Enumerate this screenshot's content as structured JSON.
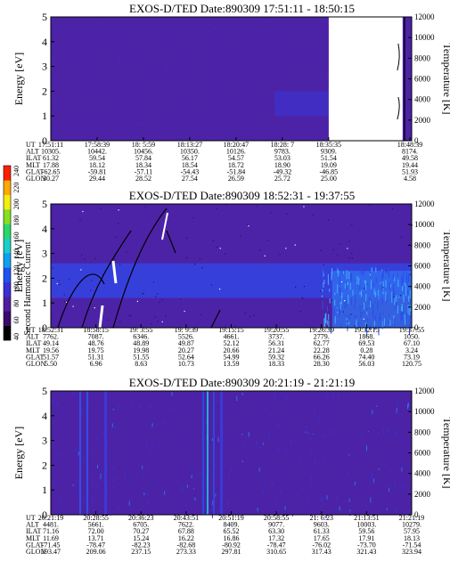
{
  "colorbar": {
    "label": "Second Harmonic Current",
    "ticks": [
      "40",
      "60",
      "80",
      "100",
      "120",
      "140",
      "160",
      "180",
      "200",
      "220",
      "240"
    ],
    "colors": [
      "#000000",
      "#3a0a6e",
      "#4f1fa0",
      "#3b2fd8",
      "#1f52f2",
      "#0fa0f0",
      "#18d0c8",
      "#28d86a",
      "#86e020",
      "#f2ee10",
      "#ffa800",
      "#ff2000"
    ]
  },
  "chart_data": [
    {
      "type": "heatmap",
      "title": "EXOS-D/TED   Date:890309  17:51:11 - 18:50:15",
      "ylabel": "Energy [eV]",
      "y2label": "Temperature [K]",
      "ylim": [
        0,
        5
      ],
      "y2lim": [
        0,
        12000
      ],
      "yticks": [
        "0",
        "1",
        "2",
        "3",
        "4",
        "5"
      ],
      "y2ticks": [
        "0",
        "2000",
        "4000",
        "6000",
        "8000",
        "10000",
        "12000"
      ],
      "data_gap": [
        "18:35:35",
        "18:48:39"
      ],
      "ephemeris": {
        "labels": [
          "UT",
          "ALT",
          "ILAT",
          "MLT",
          "GLAT",
          "GLON"
        ],
        "columns": [
          [
            "17:51:11",
            "10305.",
            "61.32",
            "17.88",
            "-62.65",
            "30.27"
          ],
          [
            "17:58:39",
            "10442.",
            "59.54",
            "18.12",
            "-59.81",
            "29.44"
          ],
          [
            "18: 5:59",
            "10456.",
            "57.84",
            "18.34",
            "-57.11",
            "28.52"
          ],
          [
            "18:13:27",
            "10350.",
            "56.17",
            "18.54",
            "-54.43",
            "27.54"
          ],
          [
            "18:20:47",
            "10126.",
            "54.57",
            "18.72",
            "-51.84",
            "26.59"
          ],
          [
            "18:28: 7",
            "9783.",
            "53.03",
            "18.90",
            "-49.32",
            "25.72"
          ],
          [
            "18:35:35",
            "9309.",
            "51.54",
            "19.09",
            "-46.85",
            "25.00"
          ],
          [
            "18:48:39",
            "8174.",
            "49.58",
            "19.44",
            "51.93",
            "4.58"
          ]
        ]
      }
    },
    {
      "type": "heatmap",
      "title": "EXOS-D/TED   Date:890309  18:52:31 - 19:37:55",
      "ylabel": "Energy [eV]",
      "y2label": "Temperature [K]",
      "ylim": [
        0,
        5
      ],
      "y2lim": [
        0,
        12000
      ],
      "yticks": [
        "0",
        "1",
        "2",
        "3",
        "4",
        "5"
      ],
      "y2ticks": [
        "0",
        "2000",
        "4000",
        "6000",
        "8000",
        "10000",
        "12000"
      ],
      "ephemeris": {
        "labels": [
          "UT",
          "ALT",
          "ILAT",
          "MLT",
          "GLAT",
          "GLON"
        ],
        "columns": [
          [
            "18:52:31",
            "7762.",
            "49.14",
            "19.56",
            "51.57",
            "5.50"
          ],
          [
            "18:58:15",
            "7087.",
            "48.76",
            "19.75",
            "51.31",
            "6.96"
          ],
          [
            "19: 3:55",
            "6346.",
            "48.89",
            "19.98",
            "51.55",
            "8.63"
          ],
          [
            "19: 9:39",
            "5526.",
            "49.87",
            "20.27",
            "52.64",
            "10.73"
          ],
          [
            "19:15:15",
            "4661.",
            "52.12",
            "20.66",
            "54.99",
            "13.59"
          ],
          [
            "19:20:55",
            "3737.",
            "56.31",
            "21.24",
            "59.32",
            "18.33"
          ],
          [
            "19:26:39",
            "2779.",
            "62.77",
            "22.28",
            "66.26",
            "28.30"
          ],
          [
            "19:32:15",
            "1868.",
            "69.53",
            "0.28",
            "74.40",
            "56.03"
          ],
          [
            "19:37:55",
            "1050.",
            "67.10",
            "3.24",
            "73.19",
            "120.75"
          ]
        ]
      }
    },
    {
      "type": "heatmap",
      "title": "EXOS-D/TED   Date:890309  20:21:19 - 21:21:19",
      "ylabel": "Energy [eV]",
      "y2label": "Temperature [K]",
      "ylim": [
        0,
        5
      ],
      "y2lim": [
        0,
        12000
      ],
      "yticks": [
        "0",
        "1",
        "2",
        "3",
        "4",
        "5"
      ],
      "y2ticks": [
        "0",
        "2000",
        "4000",
        "6000",
        "8000",
        "10000",
        "12000"
      ],
      "ephemeris": {
        "labels": [
          "UT",
          "ALT",
          "ILAT",
          "MLT",
          "GLAT",
          "GLON"
        ],
        "columns": [
          [
            "20:21:19",
            "4481.",
            "71.16",
            "11.69",
            "-71.45",
            "193.47"
          ],
          [
            "20:28:55",
            "5661.",
            "72.00",
            "13.71",
            "-78.47",
            "209.06"
          ],
          [
            "20:36:23",
            "6705.",
            "70.27",
            "15.24",
            "-82.23",
            "237.15"
          ],
          [
            "20:43:51",
            "7622.",
            "67.88",
            "16.22",
            "-82.68",
            "273.33"
          ],
          [
            "20:51:19",
            "8409.",
            "65.52",
            "16.86",
            "-80.92",
            "297.81"
          ],
          [
            "20:58:55",
            "9077.",
            "63.30",
            "17.32",
            "-78.47",
            "310.65"
          ],
          [
            "21: 6:23",
            "9603.",
            "61.33",
            "17.65",
            "-76.02",
            "317.43"
          ],
          [
            "21:13:51",
            "10003.",
            "59.56",
            "17.91",
            "-73.70",
            "321.43"
          ],
          [
            "21:21:19",
            "10279.",
            "57.95",
            "18.13",
            "-71.54",
            "323.94"
          ]
        ]
      }
    }
  ]
}
